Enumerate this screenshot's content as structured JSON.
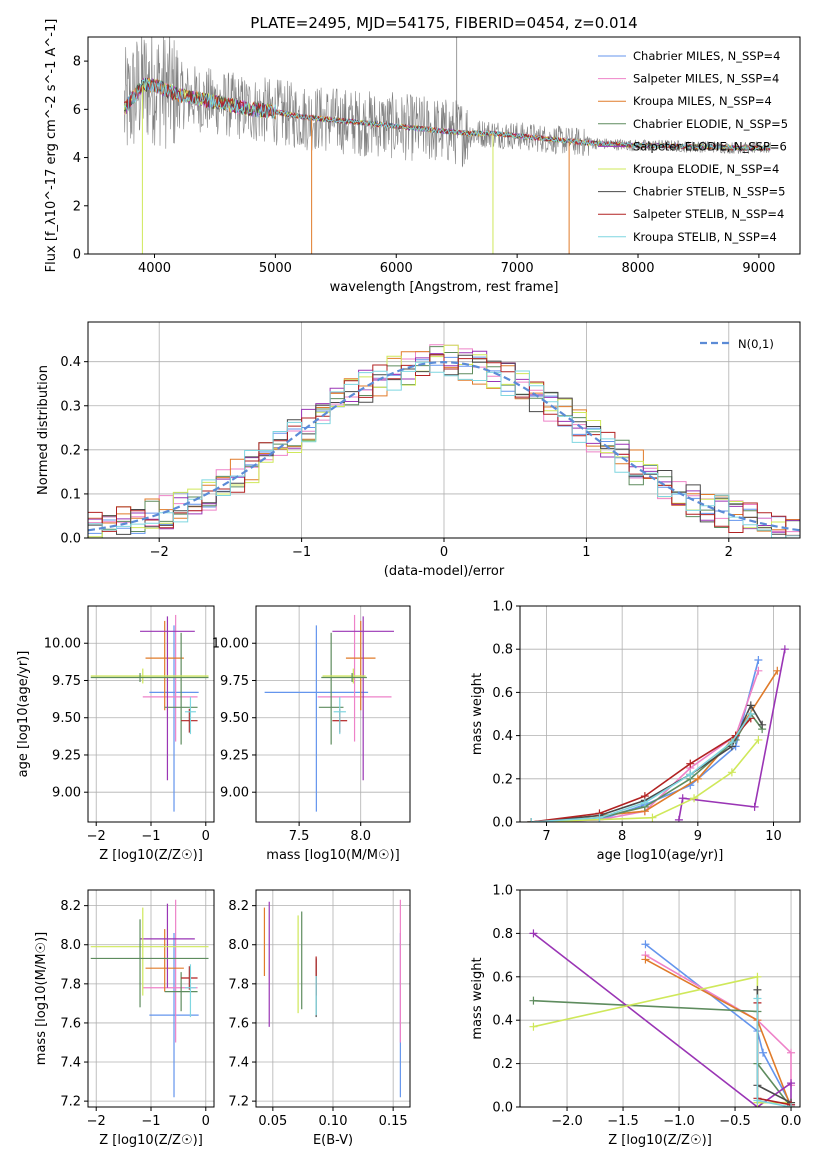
{
  "figure": {
    "title": "PLATE=2495, MJD=54175, FIBERID=0454, z=0.014"
  },
  "chart_data": [
    {
      "id": "spectrum",
      "type": "line",
      "title": "PLATE=2495, MJD=54175, FIBERID=0454, z=0.014",
      "xlabel": "wavelength [Angstrom, rest frame]",
      "ylabel": "Flux [f_λ10^-17 erg cm^-2 s^-1 A^-1]",
      "xlim": [
        3450,
        9340
      ],
      "ylim": [
        0,
        9
      ],
      "xticks": [
        4000,
        5000,
        6000,
        7000,
        8000,
        9000
      ],
      "yticks": [
        0,
        2,
        4,
        6,
        8
      ],
      "grid": false,
      "legend_position": "top-right",
      "continuum": {
        "x": [
          3750,
          3900,
          4000,
          4100,
          4200,
          4400,
          4600,
          4800,
          5000,
          5200,
          5400,
          5600,
          5800,
          6000,
          6200,
          6400,
          6600,
          6800,
          7000,
          7200,
          7400,
          7600,
          7800,
          8000,
          8200,
          8400,
          8600,
          8800,
          9000,
          9100
        ],
        "y": [
          6.0,
          7.0,
          7.0,
          6.8,
          6.6,
          6.4,
          6.2,
          6.0,
          5.9,
          5.7,
          5.6,
          5.5,
          5.4,
          5.3,
          5.2,
          5.1,
          5.0,
          5.0,
          4.9,
          4.8,
          4.7,
          4.6,
          4.55,
          4.5,
          4.5,
          4.45,
          4.45,
          4.4,
          4.4,
          4.4
        ]
      },
      "series": [
        {
          "name": "Chabrier MILES, N_SSP=4",
          "color": "#6495ed"
        },
        {
          "name": "Salpeter MILES, N_SSP=4",
          "color": "#ee82c8"
        },
        {
          "name": "Kroupa MILES, N_SSP=4",
          "color": "#e07b2a"
        },
        {
          "name": "Chabrier ELODIE, N_SSP=5",
          "color": "#5e8c5e"
        },
        {
          "name": "Salpeter ELODIE, N_SSP=6",
          "color": "#9a35b5"
        },
        {
          "name": "Kroupa ELODIE, N_SSP=4",
          "color": "#cfe85a"
        },
        {
          "name": "Chabrier STELIB, N_SSP=5",
          "color": "#4a4a4a"
        },
        {
          "name": "Salpeter STELIB, N_SSP=4",
          "color": "#b22222"
        },
        {
          "name": "Kroupa STELIB, N_SSP=4",
          "color": "#7fd6e0"
        }
      ]
    },
    {
      "id": "residuals",
      "type": "line",
      "xlabel": "(data-model)/error",
      "ylabel": "Normed distribution",
      "xlim": [
        -2.5,
        2.5
      ],
      "ylim": [
        0,
        0.49
      ],
      "xticks": [
        -2,
        -1,
        0,
        1,
        2
      ],
      "yticks": [
        0.0,
        0.1,
        0.2,
        0.3,
        0.4
      ],
      "grid": true,
      "legend_position": "top-right",
      "normal_curve": {
        "name": "N(0,1)",
        "mean": 0,
        "sigma": 1,
        "color": "#5b8bd6"
      },
      "hist_bin_width": 0.1
    },
    {
      "id": "age-vs-Z",
      "type": "scatter",
      "xlabel": "Z [log10(Z/Z☉)]",
      "ylabel": "age [log10(age/yr)]",
      "xlim": [
        -2.15,
        0.15
      ],
      "ylim": [
        8.8,
        10.25
      ],
      "xticks": [
        -2,
        -1,
        0
      ],
      "yticks": [
        9.0,
        9.25,
        9.5,
        9.75,
        10.0
      ],
      "grid": true,
      "points": [
        {
          "x": -0.58,
          "y": 9.67,
          "xerr": [
            0.45,
            0.45
          ],
          "yerr": [
            0.8,
            0.45
          ],
          "color": "#6495ed"
        },
        {
          "x": -0.55,
          "y": 9.64,
          "xerr": [
            0.6,
            0.4
          ],
          "yerr": [
            0.3,
            0.55
          ],
          "color": "#ee82c8"
        },
        {
          "x": -0.75,
          "y": 9.9,
          "xerr": [
            0.35,
            0.35
          ],
          "yerr": [
            0.35,
            0.25
          ],
          "color": "#e07b2a"
        },
        {
          "x": -0.45,
          "y": 9.57,
          "xerr": [
            0.3,
            0.3
          ],
          "yerr": [
            0.25,
            0.5
          ],
          "color": "#5e8c5e"
        },
        {
          "x": -0.7,
          "y": 10.08,
          "xerr": [
            0.5,
            0.5
          ],
          "yerr": [
            1.0,
            0.1
          ],
          "color": "#9a35b5"
        },
        {
          "x": -1.15,
          "y": 9.78,
          "xerr": [
            0.95,
            1.2
          ],
          "yerr": [
            0.05,
            0.05
          ],
          "color": "#cfe85a"
        },
        {
          "x": -1.2,
          "y": 9.77,
          "xerr": [
            0.9,
            1.25
          ],
          "yerr": [
            0.03,
            0.03
          ],
          "color": "#5e8c5e"
        },
        {
          "x": -0.3,
          "y": 9.48,
          "xerr": [
            0.15,
            0.15
          ],
          "yerr": [
            0.08,
            0.08
          ],
          "color": "#b22222"
        },
        {
          "x": -0.28,
          "y": 9.54,
          "xerr": [
            0.1,
            0.1
          ],
          "yerr": [
            0.15,
            0.1
          ],
          "color": "#7fd6e0"
        }
      ]
    },
    {
      "id": "age-vs-mass",
      "type": "scatter",
      "xlabel": "mass [log10(M/M☉)]",
      "ylabel": "",
      "xlim": [
        7.15,
        8.4
      ],
      "ylim": [
        8.8,
        10.25
      ],
      "xticks": [
        7.5,
        8.0
      ],
      "yticks": [
        9.0,
        9.25,
        9.5,
        9.75,
        10.0
      ],
      "grid": true,
      "points": [
        {
          "x": 7.64,
          "y": 9.67,
          "xerr": [
            0.42,
            0.42
          ],
          "yerr": [
            0.8,
            0.45
          ],
          "color": "#6495ed"
        },
        {
          "x": 7.95,
          "y": 9.64,
          "xerr": [
            0.3,
            0.3
          ],
          "yerr": [
            0.3,
            0.55
          ],
          "color": "#ee82c8"
        },
        {
          "x": 8.0,
          "y": 9.9,
          "xerr": [
            0.12,
            0.12
          ],
          "yerr": [
            0.35,
            0.25
          ],
          "color": "#e07b2a"
        },
        {
          "x": 7.76,
          "y": 9.57,
          "xerr": [
            0.1,
            0.1
          ],
          "yerr": [
            0.25,
            0.5
          ],
          "color": "#5e8c5e"
        },
        {
          "x": 8.02,
          "y": 10.08,
          "xerr": [
            0.25,
            0.25
          ],
          "yerr": [
            1.0,
            0.1
          ],
          "color": "#9a35b5"
        },
        {
          "x": 7.94,
          "y": 9.78,
          "xerr": [
            0.25,
            0.1
          ],
          "yerr": [
            0.05,
            0.05
          ],
          "color": "#cfe85a"
        },
        {
          "x": 7.93,
          "y": 9.77,
          "xerr": [
            0.25,
            0.12
          ],
          "yerr": [
            0.03,
            0.03
          ],
          "color": "#5e8c5e"
        },
        {
          "x": 7.83,
          "y": 9.48,
          "xerr": [
            0.06,
            0.06
          ],
          "yerr": [
            0.08,
            0.08
          ],
          "color": "#b22222"
        },
        {
          "x": 7.83,
          "y": 9.54,
          "xerr": [
            0.05,
            0.05
          ],
          "yerr": [
            0.15,
            0.1
          ],
          "color": "#7fd6e0"
        }
      ]
    },
    {
      "id": "weight-vs-age",
      "type": "line",
      "xlabel": "age [log10(age/yr)]",
      "ylabel": "mass weight",
      "xlim": [
        6.65,
        10.35
      ],
      "ylim": [
        0,
        1.0
      ],
      "xticks": [
        7,
        8,
        9,
        10
      ],
      "yticks": [
        0.0,
        0.2,
        0.4,
        0.6,
        0.8,
        1.0
      ],
      "grid": true,
      "series": [
        {
          "color": "#6495ed",
          "x": [
            6.8,
            7.7,
            8.3,
            8.9,
            9.5,
            9.8
          ],
          "y": [
            0.0,
            0.01,
            0.08,
            0.17,
            0.35,
            0.75
          ]
        },
        {
          "color": "#ee82c8",
          "x": [
            6.8,
            7.7,
            8.3,
            8.9,
            9.5,
            9.8
          ],
          "y": [
            0.0,
            0.01,
            0.05,
            0.25,
            0.4,
            0.7
          ]
        },
        {
          "color": "#e07b2a",
          "x": [
            6.8,
            8.3,
            9.0,
            9.5,
            10.05
          ],
          "y": [
            0.0,
            0.05,
            0.2,
            0.4,
            0.7
          ]
        },
        {
          "color": "#5e8c5e",
          "x": [
            6.8,
            7.7,
            8.3,
            8.9,
            9.5,
            9.7,
            9.85
          ],
          "y": [
            0.0,
            0.02,
            0.07,
            0.2,
            0.38,
            0.5,
            0.43
          ]
        },
        {
          "color": "#9a35b5",
          "x": [
            8.75,
            8.8,
            9.75,
            10.15
          ],
          "y": [
            0.01,
            0.11,
            0.07,
            0.8
          ]
        },
        {
          "color": "#cfe85a",
          "x": [
            6.8,
            8.4,
            8.95,
            9.45,
            9.8
          ],
          "y": [
            0.0,
            0.02,
            0.11,
            0.23,
            0.38
          ]
        },
        {
          "color": "#4a4a4a",
          "x": [
            6.8,
            7.7,
            8.3,
            8.9,
            9.45,
            9.7,
            9.85
          ],
          "y": [
            0.0,
            0.03,
            0.1,
            0.22,
            0.35,
            0.54,
            0.45
          ]
        },
        {
          "color": "#b22222",
          "x": [
            6.8,
            7.7,
            8.3,
            8.9,
            9.5,
            9.7
          ],
          "y": [
            0.0,
            0.04,
            0.12,
            0.27,
            0.4,
            0.48
          ]
        },
        {
          "color": "#7fd6e0",
          "x": [
            6.8,
            7.7,
            8.3,
            8.9,
            9.45,
            9.7
          ],
          "y": [
            0.0,
            0.02,
            0.09,
            0.22,
            0.37,
            0.5
          ]
        }
      ]
    },
    {
      "id": "mass-vs-Z",
      "type": "scatter",
      "xlabel": "Z [log10(Z/Z☉)]",
      "ylabel": "mass [log10(M/M☉)]",
      "xlim": [
        -2.15,
        0.15
      ],
      "ylim": [
        7.17,
        8.28
      ],
      "xticks": [
        -2,
        -1,
        0
      ],
      "yticks": [
        7.2,
        7.4,
        7.6,
        7.8,
        8.0,
        8.2
      ],
      "grid": true,
      "points": [
        {
          "x": -0.58,
          "y": 7.64,
          "xerr": [
            0.45,
            0.45
          ],
          "yerr": [
            0.42,
            0.42
          ],
          "color": "#6495ed"
        },
        {
          "x": -0.55,
          "y": 7.78,
          "xerr": [
            0.6,
            0.4
          ],
          "yerr": [
            0.28,
            0.45
          ],
          "color": "#ee82c8"
        },
        {
          "x": -0.75,
          "y": 7.88,
          "xerr": [
            0.35,
            0.35
          ],
          "yerr": [
            0.12,
            0.2
          ],
          "color": "#e07b2a"
        },
        {
          "x": -0.45,
          "y": 7.76,
          "xerr": [
            0.3,
            0.3
          ],
          "yerr": [
            0.1,
            0.1
          ],
          "color": "#5e8c5e"
        },
        {
          "x": -0.7,
          "y": 8.03,
          "xerr": [
            0.5,
            0.5
          ],
          "yerr": [
            0.25,
            0.18
          ],
          "color": "#9a35b5"
        },
        {
          "x": -1.15,
          "y": 7.99,
          "xerr": [
            0.95,
            1.2
          ],
          "yerr": [
            0.25,
            0.2
          ],
          "color": "#cfe85a"
        },
        {
          "x": -1.2,
          "y": 7.93,
          "xerr": [
            0.9,
            1.25
          ],
          "yerr": [
            0.25,
            0.2
          ],
          "color": "#5e8c5e"
        },
        {
          "x": -0.3,
          "y": 7.83,
          "xerr": [
            0.15,
            0.15
          ],
          "yerr": [
            0.06,
            0.06
          ],
          "color": "#b22222"
        },
        {
          "x": -0.28,
          "y": 7.78,
          "xerr": [
            0.1,
            0.1
          ],
          "yerr": [
            0.15,
            0.12
          ],
          "color": "#7fd6e0"
        }
      ]
    },
    {
      "id": "mass-vs-EBV",
      "type": "scatter",
      "xlabel": "E(B-V)",
      "ylabel": "",
      "xlim": [
        0.036,
        0.164
      ],
      "ylim": [
        7.17,
        8.28
      ],
      "xticks": [
        0.05,
        0.1,
        0.15
      ],
      "yticks": [
        7.2,
        7.4,
        7.6,
        7.8,
        8.0,
        8.2
      ],
      "grid": true,
      "points": [
        {
          "x": 0.156,
          "y": 7.64,
          "xerr": [
            0,
            0
          ],
          "yerr": [
            0.42,
            0.42
          ],
          "color": "#6495ed"
        },
        {
          "x": 0.156,
          "y": 7.78,
          "xerr": [
            0,
            0
          ],
          "yerr": [
            0.28,
            0.45
          ],
          "color": "#ee82c8"
        },
        {
          "x": 0.043,
          "y": 7.99,
          "xerr": [
            0,
            0
          ],
          "yerr": [
            0.15,
            0.2
          ],
          "color": "#e07b2a"
        },
        {
          "x": 0.074,
          "y": 7.92,
          "xerr": [
            0,
            0
          ],
          "yerr": [
            0.25,
            0.25
          ],
          "color": "#5e8c5e"
        },
        {
          "x": 0.047,
          "y": 7.9,
          "xerr": [
            0,
            0
          ],
          "yerr": [
            0.32,
            0.32
          ],
          "color": "#9a35b5"
        },
        {
          "x": 0.071,
          "y": 7.9,
          "xerr": [
            0,
            0
          ],
          "yerr": [
            0.25,
            0.25
          ],
          "color": "#cfe85a"
        },
        {
          "x": 0.086,
          "y": 7.78,
          "xerr": [
            0,
            0
          ],
          "yerr": [
            0.15,
            0.15
          ],
          "color": "#4a4a4a"
        },
        {
          "x": 0.086,
          "y": 7.84,
          "xerr": [
            0,
            0
          ],
          "yerr": [
            0.1,
            0.1
          ],
          "color": "#b22222"
        },
        {
          "x": 0.086,
          "y": 7.74,
          "xerr": [
            0,
            0
          ],
          "yerr": [
            0.1,
            0.1
          ],
          "color": "#7fd6e0"
        }
      ]
    },
    {
      "id": "weight-vs-Z",
      "type": "line",
      "xlabel": "Z [log10(Z/Z☉)]",
      "ylabel": "mass weight",
      "xlim": [
        -2.42,
        0.08
      ],
      "ylim": [
        0,
        1.0
      ],
      "xticks": [
        -2.0,
        -1.5,
        -1.0,
        -0.5,
        0.0
      ],
      "yticks": [
        0.0,
        0.2,
        0.4,
        0.6,
        0.8,
        1.0
      ],
      "grid": true,
      "series": [
        {
          "color": "#6495ed",
          "x": [
            -1.3,
            -0.3,
            -0.25,
            0.0
          ],
          "y": [
            0.75,
            0.35,
            0.25,
            0.01
          ]
        },
        {
          "color": "#ee82c8",
          "x": [
            -1.3,
            -0.3,
            0.0,
            0.0
          ],
          "y": [
            0.7,
            0.4,
            0.25,
            0.1
          ]
        },
        {
          "color": "#e07b2a",
          "x": [
            -1.3,
            -0.3,
            0.0
          ],
          "y": [
            0.68,
            0.4,
            0.0
          ]
        },
        {
          "color": "#5e8c5e",
          "x": [
            -2.3,
            -0.3,
            -0.3,
            0.0
          ],
          "y": [
            0.49,
            0.44,
            0.2,
            0.0
          ]
        },
        {
          "color": "#9a35b5",
          "x": [
            -2.3,
            -0.3,
            0.0,
            0.0
          ],
          "y": [
            0.8,
            0.0,
            0.11,
            0.01
          ]
        },
        {
          "color": "#cfe85a",
          "x": [
            -2.3,
            -0.3,
            -0.3,
            0.0
          ],
          "y": [
            0.37,
            0.6,
            0.02,
            0.02
          ]
        },
        {
          "color": "#4a4a4a",
          "x": [
            -0.3,
            -0.3,
            0.0
          ],
          "y": [
            0.54,
            0.1,
            0.02
          ]
        },
        {
          "color": "#b22222",
          "x": [
            -0.3,
            -0.3,
            0.0
          ],
          "y": [
            0.48,
            0.04,
            0.01
          ]
        },
        {
          "color": "#7fd6e0",
          "x": [
            -0.3,
            -0.3,
            0.0
          ],
          "y": [
            0.5,
            0.03,
            0.0
          ]
        }
      ]
    }
  ]
}
